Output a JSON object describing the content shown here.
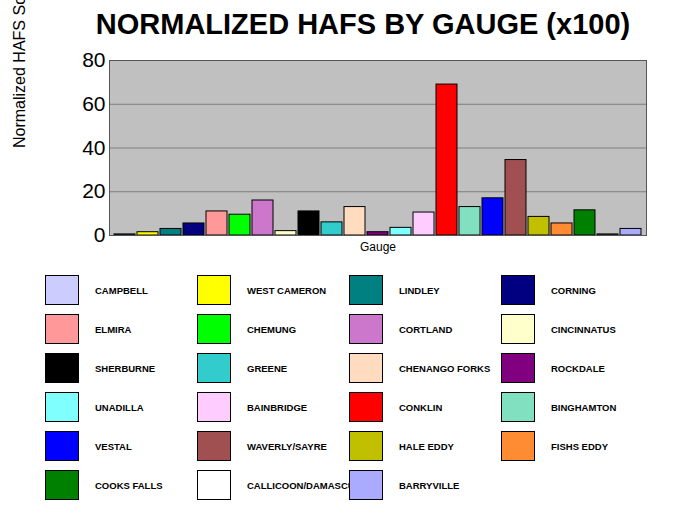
{
  "chart_data": {
    "type": "bar",
    "title": "NORMALIZED HAFS BY GAUGE (x100)",
    "x_label": "Gauge",
    "y_label": "Normalized HAFS Score",
    "categories": [
      "CAMPBELL",
      "WEST CAMERON",
      "LINDLEY",
      "CORNING",
      "ELMIRA",
      "CHEMUNG",
      "CORTLAND",
      "CINCINNATUS",
      "SHERBURNE",
      "GREENE",
      "CHENANGO FORKS",
      "ROCKDALE",
      "UNADILLA",
      "BAINBRIDGE",
      "CONKLIN",
      "BINGHAMTON",
      "VESTAL",
      "WAVERLY/SAYRE",
      "HALE EDDY",
      "FISHS EDDY",
      "COOKS FALLS",
      "CALLICOON/DAMASCUS",
      "BARRYVILLE"
    ],
    "values": [
      0.5,
      1.5,
      3,
      5.5,
      11,
      9.5,
      16,
      2,
      11,
      6,
      13,
      1.5,
      3.5,
      10.5,
      69,
      13,
      17,
      34.5,
      8.5,
      5.5,
      11.5,
      0.5,
      3
    ],
    "colors": [
      "#ccccff",
      "#ffff00",
      "#008080",
      "#000080",
      "#ff9999",
      "#00ff00",
      "#cc77cc",
      "#ffffcc",
      "#000000",
      "#33cccc",
      "#ffdcc0",
      "#800080",
      "#80ffff",
      "#ffccff",
      "#ff0000",
      "#80e0c0",
      "#0000ff",
      "#a05050",
      "#c0c000",
      "#ff8c33",
      "#008000",
      "#ffffff",
      "#aaaaff"
    ],
    "ylim": [
      0,
      80
    ],
    "yticks": [
      0,
      20,
      40,
      60,
      80
    ],
    "grid": true,
    "legend": "bottom",
    "tick_labels": "y"
  }
}
